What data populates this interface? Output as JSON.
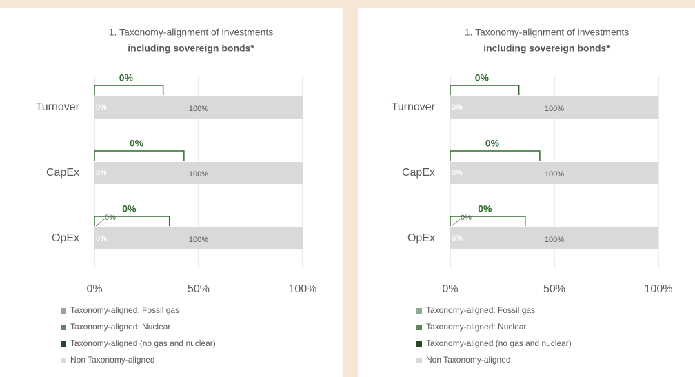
{
  "chart_data": [
    {
      "type": "bar",
      "orientation": "horizontal",
      "stacked": true,
      "title": "1. Taxonomy-alignment of investments",
      "subtitle": "including sovereign bonds*",
      "categories": [
        "Turnover",
        "CapEx",
        "OpEx"
      ],
      "series": [
        {
          "name": "Taxonomy-aligned: Fossil gas",
          "color": "#8faa8f",
          "values": [
            0,
            0,
            0
          ],
          "value_labels": [
            "0%",
            "0%",
            "0%"
          ]
        },
        {
          "name": "Taxonomy-aligned: Nuclear",
          "color": "#5a8a5a",
          "values": [
            0,
            0,
            0
          ],
          "value_labels": [
            "0%",
            "0%",
            "0%"
          ]
        },
        {
          "name": "Taxonomy-aligned (no gas and nuclear)",
          "color": "#1e4d1e",
          "values": [
            0,
            0,
            0
          ],
          "value_labels": [
            "0%",
            "0%",
            "0%"
          ]
        },
        {
          "name": "Non Taxonomy-aligned",
          "color": "#d9d9d9",
          "values": [
            100,
            100,
            100
          ],
          "value_labels": [
            "100%",
            "100%",
            "100%"
          ]
        }
      ],
      "aligned_totals": {
        "values": [
          0,
          0,
          0
        ],
        "value_labels": [
          "0%",
          "0%",
          "0%"
        ]
      },
      "annotations": [
        "0%"
      ],
      "xlim": [
        0,
        100
      ],
      "xticks": [
        {
          "value": 0,
          "label": "0%"
        },
        {
          "value": 50,
          "label": "50%"
        },
        {
          "value": 100,
          "label": "100%"
        }
      ],
      "grid": true
    },
    {
      "type": "bar",
      "orientation": "horizontal",
      "stacked": true,
      "title": "1. Taxonomy-alignment of investments",
      "subtitle": "including sovereign bonds*",
      "categories": [
        "Turnover",
        "CapEx",
        "OpEx"
      ],
      "series": [
        {
          "name": "Taxonomy-aligned: Fossil gas",
          "color": "#8faa8f",
          "values": [
            0,
            0,
            0
          ],
          "value_labels": [
            "0%",
            "0%",
            "0%"
          ]
        },
        {
          "name": "Taxonomy-aligned: Nuclear",
          "color": "#5a8a5a",
          "values": [
            0,
            0,
            0
          ],
          "value_labels": [
            "0%",
            "0%",
            "0%"
          ]
        },
        {
          "name": "Taxonomy-aligned (no gas and nuclear)",
          "color": "#1e4d1e",
          "values": [
            0,
            0,
            0
          ],
          "value_labels": [
            "0%",
            "0%",
            "0%"
          ]
        },
        {
          "name": "Non Taxonomy-aligned",
          "color": "#d9d9d9",
          "values": [
            100,
            100,
            100
          ],
          "value_labels": [
            "100%",
            "100%",
            "100%"
          ]
        }
      ],
      "aligned_totals": {
        "values": [
          0,
          0,
          0
        ],
        "value_labels": [
          "0%",
          "0%",
          "0%"
        ]
      },
      "annotations": [
        "0%"
      ],
      "xlim": [
        0,
        100
      ],
      "xticks": [
        {
          "value": 0,
          "label": "0%"
        },
        {
          "value": 50,
          "label": "50%"
        },
        {
          "value": 100,
          "label": "100%"
        }
      ],
      "grid": true
    }
  ]
}
